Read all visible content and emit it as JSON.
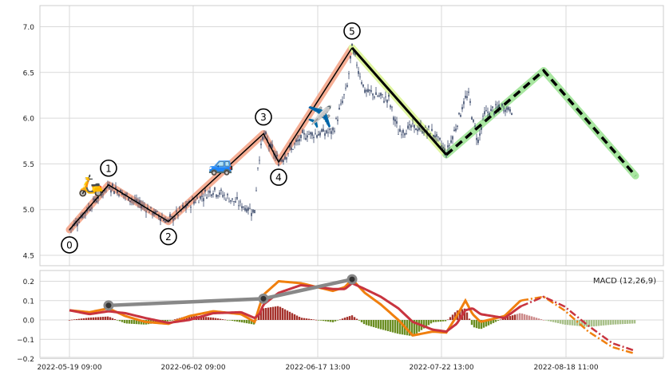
{
  "chart_data": [
    {
      "type": "candlestick",
      "title": "",
      "ylim": [
        4.4,
        7.23
      ],
      "y_ticks": [
        "4.5",
        "5.0",
        "5.5",
        "6.0",
        "6.5",
        "7.0"
      ],
      "x_tick_labels": [
        "2022-05-19 09:00",
        "2022-06-02 09:00",
        "2022-06-17 13:00",
        "2022-07-22 13:00",
        "2022-08-18 11:00"
      ],
      "grid": true,
      "candle_color": "#3b4a6b",
      "wave_points": [
        {
          "label": "0",
          "x": 0,
          "y": 4.78
        },
        {
          "label": "1",
          "x": 49,
          "y": 5.27
        },
        {
          "label": "2",
          "x": 124,
          "y": 4.87
        },
        {
          "label": "3",
          "x": 243,
          "y": 5.83
        },
        {
          "label": "4",
          "x": 262,
          "y": 5.52
        },
        {
          "label": "5",
          "x": 354,
          "y": 6.77
        }
      ],
      "projection_solid": [
        {
          "x": 354,
          "y": 6.77
        },
        {
          "x": 472,
          "y": 5.6
        }
      ],
      "projection_dashed": [
        {
          "x": 472,
          "y": 5.6
        },
        {
          "x": 594,
          "y": 6.52
        },
        {
          "x": 709,
          "y": 5.37
        }
      ],
      "emoji_markers": [
        {
          "symbol": "🛵",
          "x": 27,
          "y": 5.27
        },
        {
          "symbol": "🚙",
          "x": 190,
          "y": 5.5
        },
        {
          "symbol": "✈️",
          "x": 314,
          "y": 6.02
        }
      ],
      "colors": {
        "wave_highlight": "#f4a58a",
        "wave_line": "#000000",
        "projection_highlight_1": "#dff5a0",
        "projection_highlight_2": "#a8e6a0"
      }
    },
    {
      "type": "line",
      "title": "MACD (12,26,9)",
      "ylim": [
        -0.2,
        0.26
      ],
      "y_ticks": [
        "−0.2",
        "−0.1",
        "0.0",
        "0.1",
        "0.2"
      ],
      "grid": true,
      "series": [
        {
          "color": "#f07f0e",
          "role": "macd"
        },
        {
          "color": "#c8343f",
          "role": "signal"
        }
      ],
      "divergence_points": [
        {
          "x": 49,
          "y": 0.075
        },
        {
          "x": 243,
          "y": 0.11
        },
        {
          "x": 354,
          "y": 0.21
        }
      ],
      "colors": {
        "hist_pos": "#a5312b",
        "hist_neg": "#6b8e23",
        "hist_pos_light": "#cc8a8a",
        "hist_neg_light": "#a8c08a",
        "divergence_line": "#888888"
      }
    }
  ]
}
